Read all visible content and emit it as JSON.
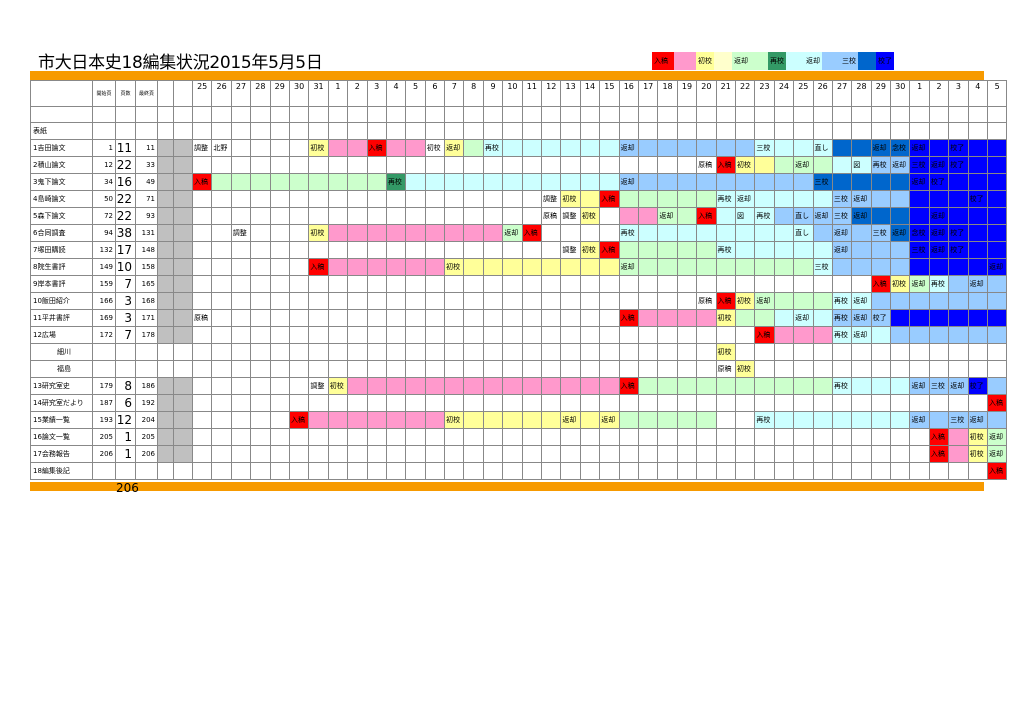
{
  "title": "市大日本史18編集状況2015年5月5日",
  "legend": [
    {
      "label": "入稿",
      "color": "#FF0000"
    },
    {
      "label": "",
      "color": "#FF99CC"
    },
    {
      "label": "初校",
      "color": "#FFFF99"
    },
    {
      "label": "",
      "color": "#FFFFCC"
    },
    {
      "label": "返却",
      "color": "#CCFFCC"
    },
    {
      "label": "",
      "color": "#CCFFCC"
    },
    {
      "label": "再校",
      "color": "#339966"
    },
    {
      "label": "",
      "color": "#CCFFFF"
    },
    {
      "label": "返却",
      "color": "#CCFFFF"
    },
    {
      "label": "",
      "color": "#99CCFF"
    },
    {
      "label": "三校",
      "color": "#99CCFF"
    },
    {
      "label": "",
      "color": "#0066CC"
    },
    {
      "label": "校了",
      "color": "#0000FF"
    }
  ],
  "header": {
    "start_page": "開始頁",
    "page_count": "頁数",
    "last_page": "最終頁"
  },
  "dates": [
    "25",
    "26",
    "27",
    "28",
    "29",
    "30",
    "31",
    "1",
    "2",
    "3",
    "4",
    "5",
    "6",
    "7",
    "8",
    "9",
    "10",
    "11",
    "12",
    "13",
    "14",
    "15",
    "16",
    "17",
    "18",
    "19",
    "20",
    "21",
    "22",
    "23",
    "24",
    "25",
    "26",
    "27",
    "28",
    "29",
    "30",
    "1",
    "2",
    "3",
    "4",
    "5"
  ],
  "colors": {
    "red": "#FF0000",
    "pink": "#FF99CC",
    "yellow": "#FFFF99",
    "green": "#CCFFCC",
    "dgreen": "#339966",
    "cyan": "#CCFFFF",
    "lblue": "#99CCFF",
    "mblue": "#0066CC",
    "blue": "#0000FF"
  },
  "rows": [
    {
      "name": "表紙",
      "start": "",
      "pages": "",
      "last": "",
      "bar": []
    },
    {
      "name": "1吉田論文",
      "start": "1",
      "pages": "11",
      "last": "11",
      "bar": [
        [
          7,
          12,
          "pink"
        ],
        [
          13,
          14,
          "yellow"
        ],
        [
          14,
          15,
          "green"
        ],
        [
          15,
          22,
          "cyan"
        ],
        [
          22,
          29,
          "lblue"
        ],
        [
          29,
          33,
          "cyan"
        ],
        [
          33,
          37,
          "mblue"
        ],
        [
          37,
          42,
          "blue"
        ]
      ],
      "labels": [
        [
          0,
          "調整"
        ],
        [
          1,
          "北野"
        ],
        [
          6,
          "初校"
        ],
        [
          9,
          "入稿"
        ],
        [
          12,
          "初校"
        ],
        [
          13,
          "返却"
        ],
        [
          15,
          "再校"
        ],
        [
          22,
          "返却"
        ],
        [
          29,
          "三校"
        ],
        [
          32,
          "直し"
        ],
        [
          35,
          "返却"
        ],
        [
          36,
          "念校"
        ],
        [
          37,
          "返却"
        ],
        [
          39,
          "校了"
        ]
      ],
      "colorcells": [
        [
          6,
          "yellow"
        ],
        [
          9,
          "red"
        ]
      ]
    },
    {
      "name": "2積山論文",
      "start": "12",
      "pages": "22",
      "last": "33",
      "bar": [
        [
          28,
          30,
          "yellow"
        ],
        [
          30,
          33,
          "green"
        ],
        [
          33,
          35,
          "cyan"
        ],
        [
          35,
          37,
          "lblue"
        ],
        [
          37,
          42,
          "blue"
        ]
      ],
      "labels": [
        [
          26,
          "原稿"
        ],
        [
          27,
          "入稿"
        ],
        [
          28,
          "初校"
        ],
        [
          31,
          "返却"
        ],
        [
          34,
          "図"
        ],
        [
          35,
          "再校"
        ],
        [
          36,
          "返却"
        ],
        [
          37,
          "三校"
        ],
        [
          38,
          "返却"
        ],
        [
          39,
          "校了"
        ]
      ],
      "colorcells": [
        [
          27,
          "red"
        ]
      ]
    },
    {
      "name": "3鬼下論文",
      "start": "34",
      "pages": "16",
      "last": "49",
      "bar": [
        [
          1,
          10,
          "green"
        ],
        [
          10,
          11,
          "dgreen"
        ],
        [
          11,
          22,
          "cyan"
        ],
        [
          22,
          32,
          "lblue"
        ],
        [
          32,
          37,
          "mblue"
        ],
        [
          37,
          42,
          "blue"
        ]
      ],
      "labels": [
        [
          0,
          "入稿"
        ],
        [
          10,
          "再校"
        ],
        [
          22,
          "返却"
        ],
        [
          32,
          "三校"
        ],
        [
          37,
          "返却"
        ],
        [
          38,
          "校了"
        ]
      ],
      "colorcells": [
        [
          0,
          "red"
        ]
      ]
    },
    {
      "name": "4島崎論文",
      "start": "50",
      "pages": "22",
      "last": "71",
      "bar": [
        [
          19,
          21,
          "yellow"
        ],
        [
          22,
          27,
          "green"
        ],
        [
          27,
          33,
          "cyan"
        ],
        [
          33,
          37,
          "lblue"
        ],
        [
          37,
          42,
          "blue"
        ]
      ],
      "labels": [
        [
          18,
          "調整"
        ],
        [
          19,
          "初校"
        ],
        [
          21,
          "入稿"
        ],
        [
          27,
          "再校"
        ],
        [
          28,
          "返却"
        ],
        [
          33,
          "三校"
        ],
        [
          34,
          "返却"
        ],
        [
          40,
          "校了"
        ]
      ],
      "colorcells": [
        [
          21,
          "red"
        ]
      ]
    },
    {
      "name": "5森下論文",
      "start": "72",
      "pages": "22",
      "last": "93",
      "bar": [
        [
          20,
          21,
          "yellow"
        ],
        [
          22,
          24,
          "pink"
        ],
        [
          24,
          26,
          "green"
        ],
        [
          27,
          30,
          "cyan"
        ],
        [
          30,
          34,
          "lblue"
        ],
        [
          34,
          37,
          "mblue"
        ],
        [
          37,
          42,
          "blue"
        ]
      ],
      "labels": [
        [
          18,
          "原稿"
        ],
        [
          19,
          "調整"
        ],
        [
          20,
          "初校"
        ],
        [
          24,
          "返却"
        ],
        [
          26,
          "入稿"
        ],
        [
          28,
          "図"
        ],
        [
          29,
          "再校"
        ],
        [
          31,
          "直し"
        ],
        [
          32,
          "返却"
        ],
        [
          33,
          "三校"
        ],
        [
          34,
          "返却"
        ],
        [
          38,
          "返却"
        ]
      ],
      "colorcells": [
        [
          26,
          "red"
        ]
      ]
    },
    {
      "name": "6合同調査",
      "start": "94",
      "pages": "38",
      "last": "131",
      "bar": [
        [
          7,
          16,
          "pink"
        ],
        [
          16,
          17,
          "green"
        ],
        [
          22,
          32,
          "cyan"
        ],
        [
          32,
          36,
          "lblue"
        ],
        [
          36,
          37,
          "mblue"
        ],
        [
          37,
          42,
          "blue"
        ]
      ],
      "labels": [
        [
          2,
          "調整"
        ],
        [
          6,
          "初校"
        ],
        [
          16,
          "返却"
        ],
        [
          17,
          "入稿"
        ],
        [
          22,
          "再校"
        ],
        [
          31,
          "直し"
        ],
        [
          33,
          "返却"
        ],
        [
          35,
          "三校"
        ],
        [
          36,
          "返却"
        ],
        [
          37,
          "念校"
        ],
        [
          38,
          "返却"
        ],
        [
          39,
          "校了"
        ]
      ],
      "colorcells": [
        [
          6,
          "yellow"
        ],
        [
          17,
          "red"
        ]
      ]
    },
    {
      "name": "7塚田購読",
      "start": "132",
      "pages": "17",
      "last": "148",
      "bar": [
        [
          20,
          21,
          "yellow"
        ],
        [
          22,
          27,
          "green"
        ],
        [
          27,
          33,
          "cyan"
        ],
        [
          33,
          37,
          "lblue"
        ],
        [
          37,
          42,
          "blue"
        ]
      ],
      "labels": [
        [
          19,
          "調整"
        ],
        [
          20,
          "初校"
        ],
        [
          21,
          "入稿"
        ],
        [
          27,
          "再校"
        ],
        [
          33,
          "返却"
        ],
        [
          37,
          "三校"
        ],
        [
          38,
          "返却"
        ],
        [
          39,
          "校了"
        ]
      ],
      "colorcells": [
        [
          21,
          "red"
        ]
      ]
    },
    {
      "name": "8院生書評",
      "start": "149",
      "pages": "10",
      "last": "158",
      "bar": [
        [
          7,
          13,
          "pink"
        ],
        [
          13,
          22,
          "yellow"
        ],
        [
          22,
          32,
          "green"
        ],
        [
          33,
          37,
          "lblue"
        ],
        [
          37,
          42,
          "blue"
        ]
      ],
      "labels": [
        [
          6,
          "入稿"
        ],
        [
          13,
          "初校"
        ],
        [
          22,
          "返却"
        ],
        [
          32,
          "三校"
        ],
        [
          41,
          "返却"
        ]
      ],
      "colorcells": [
        [
          6,
          "red"
        ],
        [
          32,
          "cyan"
        ]
      ]
    },
    {
      "name": "9岸本書評",
      "start": "159",
      "pages": "7",
      "last": "165",
      "bar": [
        [
          38,
          42,
          "lblue"
        ]
      ],
      "labels": [
        [
          35,
          "入稿"
        ],
        [
          36,
          "初校"
        ],
        [
          37,
          "返却"
        ],
        [
          38,
          "再校"
        ],
        [
          40,
          "返却"
        ]
      ],
      "colorcells": [
        [
          35,
          "red"
        ],
        [
          36,
          "yellow"
        ],
        [
          37,
          "green"
        ],
        [
          38,
          "cyan"
        ]
      ]
    },
    {
      "name": "10飯田紹介",
      "start": "166",
      "pages": "3",
      "last": "168",
      "bar": [
        [
          28,
          33,
          "green"
        ],
        [
          33,
          35,
          "cyan"
        ],
        [
          35,
          42,
          "lblue"
        ]
      ],
      "labels": [
        [
          26,
          "原稿"
        ],
        [
          27,
          "入稿"
        ],
        [
          28,
          "初校"
        ],
        [
          29,
          "返却"
        ],
        [
          33,
          "再校"
        ],
        [
          34,
          "返却"
        ]
      ],
      "colorcells": [
        [
          27,
          "red"
        ],
        [
          28,
          "yellow"
        ]
      ]
    },
    {
      "name": "11平井書評",
      "start": "169",
      "pages": "3",
      "last": "171",
      "bar": [
        [
          23,
          27,
          "pink"
        ],
        [
          27,
          28,
          "yellow"
        ],
        [
          28,
          30,
          "green"
        ],
        [
          30,
          33,
          "cyan"
        ],
        [
          33,
          36,
          "lblue"
        ],
        [
          36,
          42,
          "blue"
        ]
      ],
      "labels": [
        [
          0,
          "原稿"
        ],
        [
          22,
          "入稿"
        ],
        [
          27,
          "初校"
        ],
        [
          31,
          "返却"
        ],
        [
          33,
          "再校"
        ],
        [
          34,
          "返却"
        ],
        [
          35,
          "校了"
        ]
      ],
      "colorcells": [
        [
          22,
          "red"
        ]
      ]
    },
    {
      "name": "12広場",
      "start": "172",
      "pages": "7",
      "last": "178",
      "bar": [
        [
          30,
          33,
          "pink"
        ],
        [
          33,
          36,
          "cyan"
        ],
        [
          36,
          42,
          "lblue"
        ]
      ],
      "labels": [
        [
          29,
          "入稿"
        ],
        [
          33,
          "再校"
        ],
        [
          34,
          "返却"
        ]
      ],
      "colorcells": [
        [
          29,
          "red"
        ]
      ]
    },
    {
      "name": "細川",
      "start": "",
      "pages": "",
      "last": "",
      "sub": true,
      "bar": [],
      "labels": [
        [
          27,
          "初校"
        ]
      ],
      "colorcells": [
        [
          27,
          "yellow"
        ]
      ]
    },
    {
      "name": "福島",
      "start": "",
      "pages": "",
      "last": "",
      "sub": true,
      "bar": [],
      "labels": [
        [
          27,
          "原稿"
        ],
        [
          28,
          "初校"
        ]
      ],
      "colorcells": [
        [
          28,
          "yellow"
        ]
      ]
    },
    {
      "name": "13研究室史",
      "start": "179",
      "pages": "8",
      "last": "186",
      "bar": [
        [
          8,
          22,
          "pink"
        ],
        [
          23,
          33,
          "green"
        ],
        [
          33,
          37,
          "cyan"
        ],
        [
          37,
          42,
          "lblue"
        ]
      ],
      "labels": [
        [
          6,
          "調整"
        ],
        [
          7,
          "初校"
        ],
        [
          22,
          "入稿"
        ],
        [
          33,
          "再校"
        ],
        [
          37,
          "返却"
        ],
        [
          38,
          "三校"
        ],
        [
          39,
          "返却"
        ],
        [
          40,
          "校了"
        ]
      ],
      "colorcells": [
        [
          7,
          "yellow"
        ],
        [
          22,
          "red"
        ],
        [
          40,
          "blue"
        ]
      ]
    },
    {
      "name": "14研究室だより",
      "start": "187",
      "pages": "6",
      "last": "192",
      "bar": [],
      "labels": [
        [
          41,
          "入稿"
        ]
      ],
      "colorcells": [
        [
          41,
          "red"
        ]
      ]
    },
    {
      "name": "15業績一覧",
      "start": "193",
      "pages": "12",
      "last": "204",
      "bar": [
        [
          6,
          13,
          "pink"
        ],
        [
          13,
          22,
          "yellow"
        ],
        [
          22,
          27,
          "green"
        ],
        [
          29,
          37,
          "cyan"
        ],
        [
          37,
          42,
          "lblue"
        ]
      ],
      "labels": [
        [
          5,
          "入稿"
        ],
        [
          13,
          "初校"
        ],
        [
          19,
          "返却"
        ],
        [
          21,
          "返却"
        ],
        [
          29,
          "再校"
        ],
        [
          37,
          "返却"
        ],
        [
          39,
          "三校"
        ],
        [
          40,
          "返却"
        ]
      ],
      "colorcells": [
        [
          5,
          "red"
        ]
      ]
    },
    {
      "name": "16論文一覧",
      "start": "205",
      "pages": "1",
      "last": "205",
      "bar": [],
      "labels": [
        [
          38,
          "入稿"
        ],
        [
          40,
          "初校"
        ],
        [
          41,
          "返却"
        ]
      ],
      "colorcells": [
        [
          38,
          "red"
        ],
        [
          39,
          "pink"
        ],
        [
          40,
          "yellow"
        ],
        [
          41,
          "green"
        ]
      ]
    },
    {
      "name": "17会務報告",
      "start": "206",
      "pages": "1",
      "last": "206",
      "bar": [],
      "labels": [
        [
          38,
          "入稿"
        ],
        [
          40,
          "初校"
        ],
        [
          41,
          "返却"
        ]
      ],
      "colorcells": [
        [
          38,
          "red"
        ],
        [
          39,
          "pink"
        ],
        [
          40,
          "yellow"
        ],
        [
          41,
          "green"
        ]
      ]
    },
    {
      "name": "18編集後記",
      "start": "",
      "pages": "",
      "last": "",
      "bar": [],
      "labels": [
        [
          41,
          "入稿"
        ]
      ],
      "colorcells": [
        [
          41,
          "red"
        ]
      ]
    }
  ],
  "total": "206"
}
